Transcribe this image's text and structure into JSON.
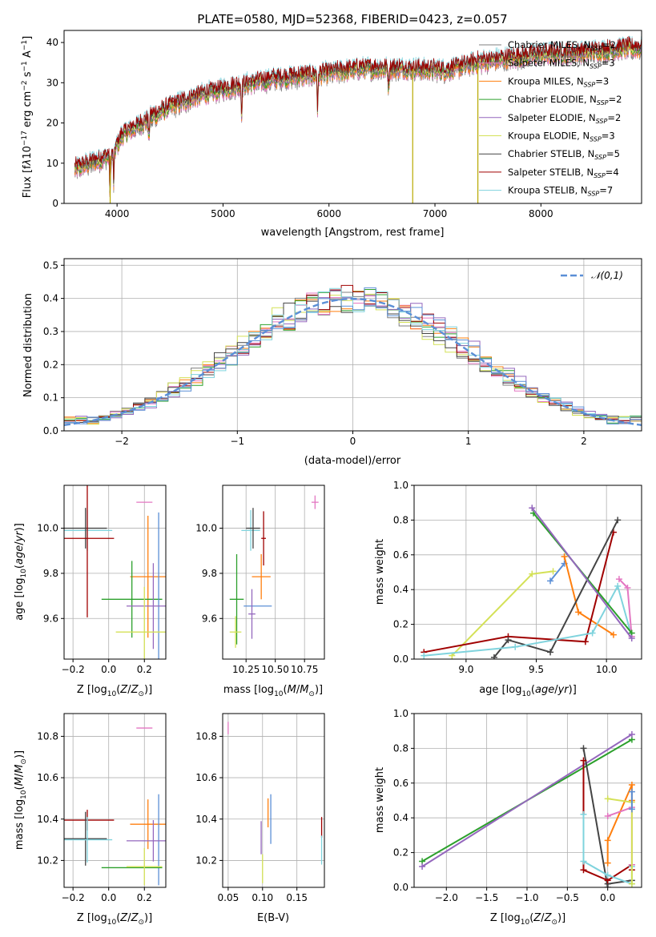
{
  "figure": {
    "title": "PLATE=0580, MJD=52368, FIBERID=0423, z=0.057"
  },
  "colors": {
    "chabrier_miles": "#7f7f7f",
    "salpeter_miles": "#e377c2",
    "kroupa_miles": "#ff7f0e",
    "chabrier_elodie": "#2ca02c",
    "salpeter_elodie": "#9467bd",
    "kroupa_elodie": "#d4e157",
    "chabrier_stelib": "#444444",
    "salpeter_stelib": "#a00000",
    "kroupa_stelib": "#7fd3dd",
    "normal": "#5b8fd6"
  },
  "chart_data": [
    {
      "id": "spectrum",
      "type": "line",
      "xlabel": "wavelength [Angstrom, rest frame]",
      "ylabel": "Flux [f_λ 10^-17 erg cm^-2 s^-1 A^-1]",
      "xlim": [
        3500,
        8950
      ],
      "ylim": [
        0,
        43
      ],
      "xticks": [
        4000,
        5000,
        6000,
        7000,
        8000
      ],
      "yticks": [
        0,
        10,
        20,
        30,
        40
      ],
      "grid": false,
      "legend_position": "top-right",
      "wavelength_start": 3600,
      "wavelength_end": 8950,
      "continuum": [
        [
          3600,
          8.5
        ],
        [
          3800,
          10.5
        ],
        [
          3950,
          12
        ],
        [
          4050,
          17
        ],
        [
          4300,
          21
        ],
        [
          4500,
          24
        ],
        [
          4800,
          27
        ],
        [
          5100,
          29
        ],
        [
          5500,
          31
        ],
        [
          5900,
          32
        ],
        [
          6300,
          33.5
        ],
        [
          6700,
          33.5
        ],
        [
          7100,
          33
        ],
        [
          7400,
          35
        ],
        [
          7700,
          36
        ],
        [
          8000,
          37
        ],
        [
          8400,
          37.5
        ],
        [
          8800,
          38.5
        ]
      ],
      "absorption_lines": [
        {
          "wavelength": 3934,
          "depth": 10
        },
        {
          "wavelength": 3969,
          "depth": 8
        },
        {
          "wavelength": 4300,
          "depth": 5
        },
        {
          "wavelength": 5175,
          "depth": 7
        },
        {
          "wavelength": 5893,
          "depth": 9
        },
        {
          "wavelength": 6563,
          "depth": 5
        }
      ],
      "spikes": [
        {
          "wavelength": 3935,
          "flux": 0
        },
        {
          "wavelength": 6790,
          "flux": 0
        },
        {
          "wavelength": 7405,
          "flux": 0
        }
      ],
      "series": [
        {
          "name": "Chabrier MILES",
          "nssp": "2",
          "color_key": "chabrier_miles"
        },
        {
          "name": "Salpeter MILES",
          "nssp": "3",
          "color_key": "salpeter_miles"
        },
        {
          "name": "Kroupa MILES",
          "nssp": "3",
          "color_key": "kroupa_miles"
        },
        {
          "name": "Chabrier ELODIE",
          "nssp": "2",
          "color_key": "chabrier_elodie"
        },
        {
          "name": "Salpeter ELODIE",
          "nssp": "2",
          "color_key": "salpeter_elodie"
        },
        {
          "name": "Kroupa ELODIE",
          "nssp": "3",
          "color_key": "kroupa_elodie"
        },
        {
          "name": "Chabrier STELIB",
          "nssp": "5",
          "color_key": "chabrier_stelib"
        },
        {
          "name": "Salpeter STELIB",
          "nssp": "4",
          "color_key": "salpeter_stelib"
        },
        {
          "name": "Kroupa STELIB",
          "nssp": "7",
          "color_key": "kroupa_stelib"
        }
      ]
    },
    {
      "id": "residuals",
      "type": "line",
      "xlabel": "(data-model)/error",
      "ylabel": "Normed distribution",
      "xlim": [
        -2.5,
        2.5
      ],
      "ylim": [
        0,
        0.52
      ],
      "xticks": [
        -2,
        -1,
        0,
        1,
        2
      ],
      "yticks": [
        0.0,
        0.1,
        0.2,
        0.3,
        0.4,
        0.5
      ],
      "grid": true,
      "legend_position": "top-right",
      "bin_width": 0.1,
      "series": [
        {
          "name": "𝒩(0,1)",
          "style": "dashed",
          "color_key": "normal"
        }
      ]
    },
    {
      "id": "age_vs_Z",
      "type": "scatter",
      "xlabel": "Z [log10(Z/Z⊙)]",
      "ylabel": "age [log10(age/yr)]",
      "xlim": [
        -0.25,
        0.32
      ],
      "ylim": [
        9.42,
        10.19
      ],
      "xticks": [
        -0.2,
        0.0,
        0.2
      ],
      "yticks": [
        9.6,
        9.8,
        10.0
      ],
      "grid": true,
      "points": [
        {
          "color_key": "salpeter_miles",
          "x": 0.2,
          "y": 10.115,
          "xerr": 0.045,
          "yerr": 0
        },
        {
          "color_key": "kroupa_stelib",
          "x": -0.12,
          "y": 9.99,
          "xerr": 0.14,
          "yerr": 0.09
        },
        {
          "color_key": "chabrier_stelib",
          "x": -0.13,
          "y": 10.0,
          "xerr": 0.12,
          "yerr": 0.09
        },
        {
          "color_key": "salpeter_stelib",
          "x": -0.12,
          "y": 9.955,
          "xerr": 0.15,
          "yerr": 0.35
        },
        {
          "color_key": "kroupa_miles",
          "x": 0.22,
          "y": 9.785,
          "xerr": 0.1,
          "yerr": 0.27
        },
        {
          "color_key": "chabrier_elodie",
          "x": 0.13,
          "y": 9.685,
          "xerr": 0.17,
          "yerr": 0.17
        },
        {
          "color_key": "normal",
          "x": 0.28,
          "y": 9.7,
          "xerr": 0,
          "yerr": 0.37
        },
        {
          "color_key": "salpeter_elodie",
          "x": 0.25,
          "y": 9.655,
          "xerr": 0.15,
          "yerr": 0.19
        },
        {
          "color_key": "kroupa_elodie",
          "x": 0.2,
          "y": 9.54,
          "xerr": 0.16,
          "yerr": 0.2
        }
      ]
    },
    {
      "id": "age_vs_mass",
      "type": "scatter",
      "xlabel": "mass [log10(M/M⊙)]",
      "ylabel": "",
      "xlim": [
        10.05,
        10.92
      ],
      "ylim": [
        9.42,
        10.19
      ],
      "xticks": [
        10.25,
        10.5,
        10.75
      ],
      "xticklabels": [
        "10.25",
        "10.50",
        "10.75"
      ],
      "yticks": [
        9.6,
        9.8,
        10.0
      ],
      "grid": true,
      "points": [
        {
          "color_key": "salpeter_miles",
          "x": 10.84,
          "y": 10.115,
          "xerr": 0.03,
          "yerr": 0.03
        },
        {
          "color_key": "kroupa_stelib",
          "x": 10.29,
          "y": 9.99,
          "xerr": 0.08,
          "yerr": 0.09
        },
        {
          "color_key": "chabrier_stelib",
          "x": 10.31,
          "y": 10.0,
          "xerr": 0.06,
          "yerr": 0.09
        },
        {
          "color_key": "salpeter_stelib",
          "x": 10.4,
          "y": 9.955,
          "xerr": 0.02,
          "yerr": 0.12
        },
        {
          "color_key": "kroupa_miles",
          "x": 10.38,
          "y": 9.785,
          "xerr": 0.08,
          "yerr": 0.1
        },
        {
          "color_key": "chabrier_elodie",
          "x": 10.17,
          "y": 9.685,
          "xerr": 0.06,
          "yerr": 0.2
        },
        {
          "color_key": "normal",
          "x": 10.35,
          "y": 9.655,
          "xerr": 0.12,
          "yerr": 0.0
        },
        {
          "color_key": "salpeter_elodie",
          "x": 10.3,
          "y": 9.62,
          "xerr": 0.03,
          "yerr": 0.11
        },
        {
          "color_key": "kroupa_elodie",
          "x": 10.16,
          "y": 9.54,
          "xerr": 0.05,
          "yerr": 0.07
        }
      ]
    },
    {
      "id": "weight_vs_age",
      "type": "line",
      "xlabel": "age [log10(age/yr)]",
      "ylabel": "mass weight",
      "xlim": [
        8.63,
        10.25
      ],
      "ylim": [
        0,
        1.0
      ],
      "xticks": [
        9.0,
        9.5,
        10.0
      ],
      "yticks": [
        0.0,
        0.2,
        0.4,
        0.6,
        0.8,
        1.0
      ],
      "grid": true,
      "series": [
        {
          "color_key": "kroupa_elodie",
          "x": [
            8.9,
            9.47,
            9.62
          ],
          "y": [
            0.02,
            0.49,
            0.505
          ]
        },
        {
          "color_key": "normal",
          "x": [
            9.6,
            9.7
          ],
          "y": [
            0.45,
            0.55
          ]
        },
        {
          "color_key": "kroupa_miles",
          "x": [
            9.7,
            9.8,
            10.05
          ],
          "y": [
            0.59,
            0.27,
            0.14
          ]
        },
        {
          "color_key": "salpeter_stelib",
          "x": [
            8.7,
            9.3,
            9.85,
            10.05
          ],
          "y": [
            0.04,
            0.13,
            0.1,
            0.73
          ]
        },
        {
          "color_key": "chabrier_stelib",
          "x": [
            9.2,
            9.3,
            9.6,
            10.08
          ],
          "y": [
            0.01,
            0.11,
            0.04,
            0.8
          ]
        },
        {
          "color_key": "kroupa_stelib",
          "x": [
            8.7,
            9.35,
            9.9,
            10.08,
            10.18
          ],
          "y": [
            0.02,
            0.07,
            0.15,
            0.42,
            0.13
          ]
        },
        {
          "color_key": "salpeter_miles",
          "x": [
            10.09,
            10.15,
            10.18
          ],
          "y": [
            0.46,
            0.41,
            0.13
          ]
        },
        {
          "color_key": "chabrier_elodie",
          "x": [
            9.48,
            10.18
          ],
          "y": [
            0.84,
            0.15
          ]
        },
        {
          "color_key": "salpeter_elodie",
          "x": [
            9.47,
            10.18
          ],
          "y": [
            0.87,
            0.12
          ]
        }
      ]
    },
    {
      "id": "mass_vs_Z",
      "type": "scatter",
      "xlabel": "Z [log10(Z/Z⊙)]",
      "ylabel": "mass [log10(M/M⊙)]",
      "xlim": [
        -0.25,
        0.32
      ],
      "ylim": [
        10.07,
        10.91
      ],
      "xticks": [
        -0.2,
        0.0,
        0.2
      ],
      "yticks": [
        10.2,
        10.4,
        10.6,
        10.8
      ],
      "grid": true,
      "points": [
        {
          "color_key": "salpeter_miles",
          "x": 0.2,
          "y": 10.84,
          "xerr": 0.045,
          "yerr": 0
        },
        {
          "color_key": "salpeter_stelib",
          "x": -0.12,
          "y": 10.395,
          "xerr": 0.15,
          "yerr": 0.05
        },
        {
          "color_key": "kroupa_miles",
          "x": 0.22,
          "y": 10.375,
          "xerr": 0.1,
          "yerr": 0.12
        },
        {
          "color_key": "normal",
          "x": 0.28,
          "y": 10.3,
          "xerr": 0,
          "yerr": 0.22
        },
        {
          "color_key": "chabrier_stelib",
          "x": -0.13,
          "y": 10.305,
          "xerr": 0.12,
          "yerr": 0.13
        },
        {
          "color_key": "kroupa_stelib",
          "x": -0.12,
          "y": 10.3,
          "xerr": 0.14,
          "yerr": 0.11
        },
        {
          "color_key": "salpeter_elodie",
          "x": 0.25,
          "y": 10.295,
          "xerr": 0.15,
          "yerr": 0.1
        },
        {
          "color_key": "chabrier_elodie",
          "x": 0.13,
          "y": 10.165,
          "xerr": 0.17,
          "yerr": 0
        },
        {
          "color_key": "kroupa_elodie",
          "x": 0.2,
          "y": 10.17,
          "xerr": 0.1,
          "yerr": 0.09
        }
      ]
    },
    {
      "id": "mass_vs_ebv",
      "type": "scatter",
      "xlabel": "E(B-V)",
      "ylabel": "",
      "xlim": [
        0.042,
        0.19
      ],
      "ylim": [
        10.07,
        10.91
      ],
      "xticks": [
        0.05,
        0.1,
        0.15
      ],
      "yticks": [
        10.2,
        10.4,
        10.6,
        10.8
      ],
      "grid": true,
      "points": [
        {
          "color_key": "salpeter_miles",
          "x": 0.05,
          "y": 10.84,
          "xerr": 0,
          "yerr": 0.03
        },
        {
          "color_key": "kroupa_miles",
          "x": 0.108,
          "y": 10.43,
          "xerr": 0,
          "yerr": 0.07
        },
        {
          "color_key": "normal",
          "x": 0.112,
          "y": 10.4,
          "xerr": 0,
          "yerr": 0.12
        },
        {
          "color_key": "salpeter_elodie",
          "x": 0.098,
          "y": 10.31,
          "xerr": 0,
          "yerr": 0.08
        },
        {
          "color_key": "kroupa_elodie",
          "x": 0.1,
          "y": 10.16,
          "xerr": 0,
          "yerr": 0.07
        },
        {
          "color_key": "salpeter_stelib",
          "x": 0.186,
          "y": 10.36,
          "xerr": 0,
          "yerr": 0.05
        },
        {
          "color_key": "kroupa_stelib",
          "x": 0.186,
          "y": 10.25,
          "xerr": 0,
          "yerr": 0.07
        }
      ]
    },
    {
      "id": "weight_vs_Z",
      "type": "line",
      "xlabel": "Z [log10(Z/Z⊙)]",
      "ylabel": "mass weight",
      "xlim": [
        -2.4,
        0.42
      ],
      "ylim": [
        0,
        1.0
      ],
      "xticks": [
        -2.0,
        -1.5,
        -1.0,
        -0.5,
        0.0
      ],
      "yticks": [
        0.0,
        0.2,
        0.4,
        0.6,
        0.8,
        1.0
      ],
      "grid": true,
      "series": [
        {
          "color_key": "chabrier_elodie",
          "x": [
            -2.3,
            0.3
          ],
          "y": [
            0.15,
            0.85
          ]
        },
        {
          "color_key": "salpeter_elodie",
          "x": [
            -2.3,
            0.3
          ],
          "y": [
            0.12,
            0.88
          ]
        },
        {
          "color_key": "chabrier_stelib",
          "x": [
            -0.3,
            0.0,
            0.0,
            0.3
          ],
          "y": [
            0.8,
            0.0,
            0.02,
            0.04
          ]
        },
        {
          "color_key": "salpeter_stelib",
          "x": [
            -0.3,
            -0.3,
            0.0,
            0.3,
            0.3
          ],
          "y": [
            0.73,
            0.1,
            0.04,
            0.13,
            0.1
          ]
        },
        {
          "color_key": "kroupa_stelib",
          "x": [
            -0.3,
            -0.3,
            0.0,
            0.3,
            0.3
          ],
          "y": [
            0.42,
            0.15,
            0.07,
            0.02,
            0.12
          ]
        },
        {
          "color_key": "kroupa_miles",
          "x": [
            0.0,
            0.0,
            0.3,
            0.3
          ],
          "y": [
            0.14,
            0.27,
            0.59,
            0.5
          ]
        },
        {
          "color_key": "salpeter_miles",
          "x": [
            0.0,
            0.3,
            0.3
          ],
          "y": [
            0.41,
            0.46,
            0.13
          ]
        },
        {
          "color_key": "kroupa_elodie",
          "x": [
            0.0,
            0.3,
            0.3
          ],
          "y": [
            0.51,
            0.49,
            0.02
          ]
        },
        {
          "color_key": "normal",
          "x": [
            0.3,
            0.3
          ],
          "y": [
            0.45,
            0.55
          ]
        }
      ]
    }
  ]
}
